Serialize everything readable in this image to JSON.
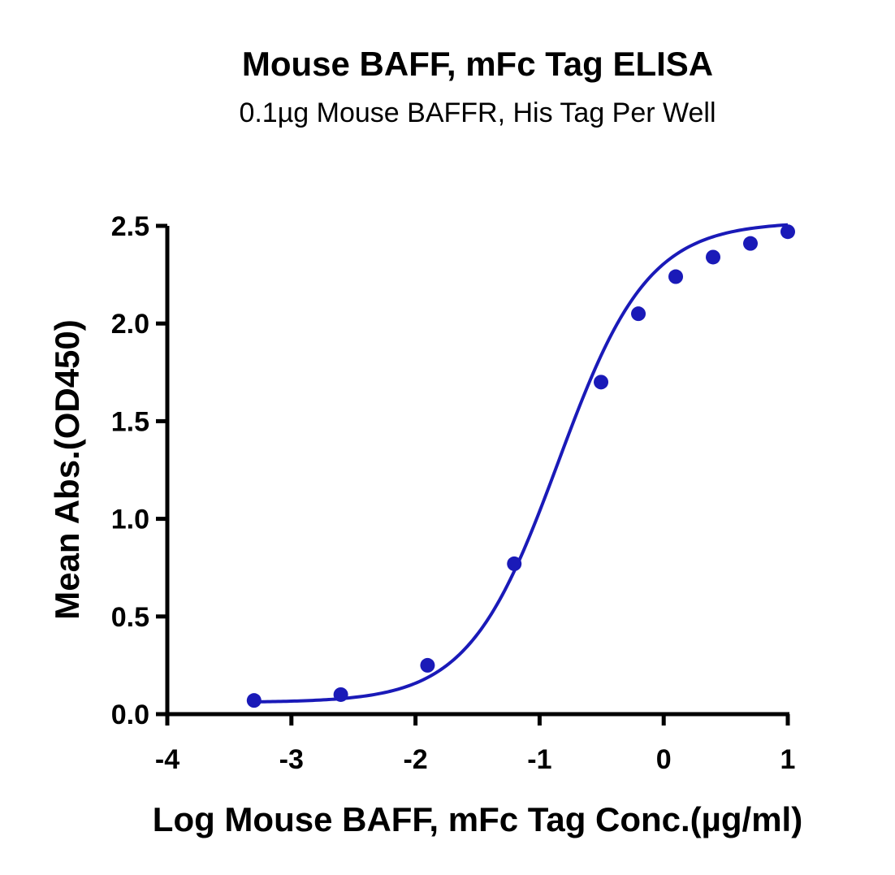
{
  "chart_data": {
    "type": "line",
    "title": "Mouse BAFF, mFc Tag ELISA",
    "subtitle": "0.1µg Mouse BAFFR, His Tag Per Well",
    "xlabel": "Log Mouse BAFF, mFc Tag Conc.(µg/ml)",
    "ylabel": "Mean Abs.(OD450)",
    "xlim": [
      -4,
      1
    ],
    "ylim": [
      0,
      2.5
    ],
    "xticks": [
      "-4",
      "-3",
      "-2",
      "-1",
      "0",
      "1"
    ],
    "yticks": [
      "0.0",
      "0.5",
      "1.0",
      "1.5",
      "2.0",
      "2.5"
    ],
    "grid": false,
    "series": [
      {
        "color": "#1a1ab8",
        "points": [
          {
            "x": -3.301,
            "y": 0.07
          },
          {
            "x": -2.602,
            "y": 0.1
          },
          {
            "x": -1.903,
            "y": 0.25
          },
          {
            "x": -1.204,
            "y": 0.77
          },
          {
            "x": -0.505,
            "y": 1.7
          },
          {
            "x": -0.204,
            "y": 2.05
          },
          {
            "x": 0.097,
            "y": 2.24
          },
          {
            "x": 0.398,
            "y": 2.34
          },
          {
            "x": 0.699,
            "y": 2.41
          },
          {
            "x": 1.0,
            "y": 2.47
          }
        ],
        "fit": {
          "type": "4PL",
          "bottom": 0.06,
          "top": 2.52,
          "log_ec50": -0.85,
          "hill": 1.2
        }
      }
    ]
  }
}
